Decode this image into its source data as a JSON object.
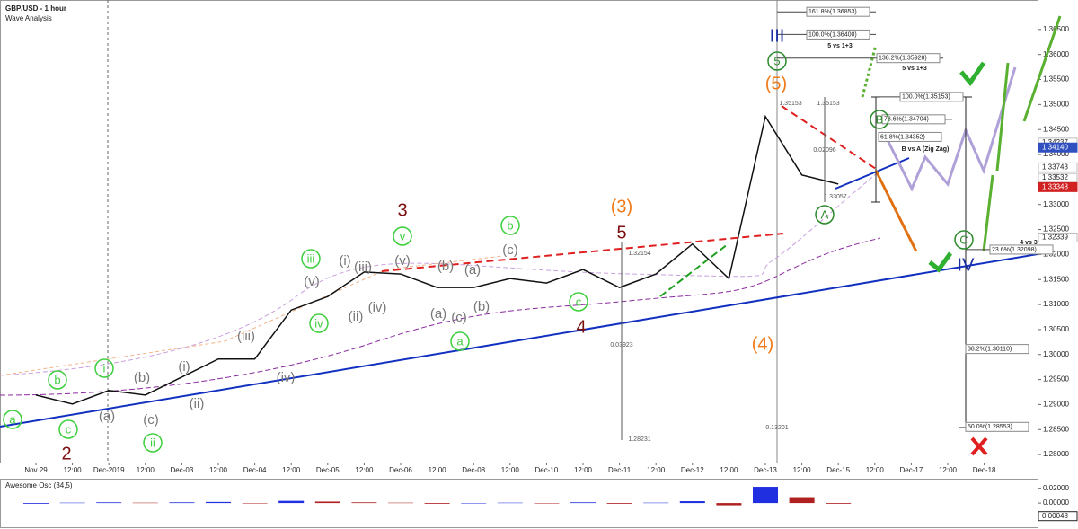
{
  "chart_data": {
    "type": "line",
    "title": "GBP/USD - 1 hour",
    "subtitle": "Wave Analysis",
    "categories": [
      "Nov 29",
      "12:00",
      "Dec-2019",
      "12:00",
      "Dec-03",
      "12:00",
      "Dec-04",
      "12:00",
      "Dec-05",
      "12:00",
      "Dec-06",
      "12:00",
      "Dec-08",
      "12:00",
      "Dec-10",
      "12:00",
      "Dec-11",
      "12:00",
      "Dec-12",
      "12:00",
      "Dec-13",
      "12:00",
      "Dec-15",
      "12:00",
      "Dec-17",
      "12:00",
      "Dec-18"
    ],
    "values": [
      1.2919,
      1.2901,
      1.2928,
      1.2919,
      1.2955,
      1.2991,
      1.2991,
      1.3089,
      1.3116,
      1.3165,
      1.3161,
      1.3134,
      1.3134,
      1.3152,
      1.3143,
      1.317,
      1.3134,
      1.3161,
      1.3221,
      1.3152,
      1.3476,
      1.3359,
      1.3341,
      null,
      null,
      null,
      null
    ],
    "color": "#111111",
    "ylim": [
      1.2784,
      1.3709
    ],
    "yticks": [
      {
        "value": 1.28,
        "label": "1.28000"
      },
      {
        "value": 1.285,
        "label": "1.28500"
      },
      {
        "value": 1.29,
        "label": "1.29000"
      },
      {
        "value": 1.295,
        "label": "1.29500"
      },
      {
        "value": 1.3,
        "label": "1.30000"
      },
      {
        "value": 1.305,
        "label": "1.30500"
      },
      {
        "value": 1.31,
        "label": "1.31000"
      },
      {
        "value": 1.315,
        "label": "1.31500"
      },
      {
        "value": 1.32,
        "label": "1.32000"
      },
      {
        "value": 1.325,
        "label": "1.32500"
      },
      {
        "value": 1.33,
        "label": "1.33000"
      },
      {
        "value": 1.335,
        "label": "1.33500"
      },
      {
        "value": 1.34,
        "label": "1.34000"
      },
      {
        "value": 1.345,
        "label": "1.34500"
      },
      {
        "value": 1.35,
        "label": "1.35000"
      },
      {
        "value": 1.355,
        "label": "1.35500"
      },
      {
        "value": 1.36,
        "label": "1.36000"
      },
      {
        "value": 1.365,
        "label": "1.36500"
      }
    ],
    "price_markers": [
      {
        "value": 1.34237,
        "label": "1.34237"
      },
      {
        "value": 1.3414,
        "label": "1.34140",
        "color": "#3050c0"
      },
      {
        "value": 1.33743,
        "label": "1.33743"
      },
      {
        "value": 1.33532,
        "label": "1.33532"
      },
      {
        "value": 1.33348,
        "label": "1.33348",
        "color": "#d02020"
      },
      {
        "value": 1.32339,
        "label": "1.32339"
      }
    ],
    "fib_levels": [
      {
        "value": 1.36853,
        "label": "161.8%(1.36853)"
      },
      {
        "value": 1.364,
        "label": "100.0%(1.36400)"
      },
      {
        "value": 1.35928,
        "label": "138.2%(1.35928)"
      },
      {
        "value": 1.35153,
        "label": "100.0%(1.35153)"
      },
      {
        "value": 1.34704,
        "label": "78.6%(1.34704)"
      },
      {
        "value": 1.34352,
        "label": "61.8%(1.34352)"
      },
      {
        "value": 1.32098,
        "label": "23.6%(1.32098)"
      },
      {
        "value": 1.3011,
        "label": "38.2%(1.30110)"
      },
      {
        "value": 1.28553,
        "label": "50.0%(1.28553)"
      }
    ],
    "notes": [
      "5 vs 1+3",
      "5 vs 1+3",
      "B vs A (Zig Zag)",
      "4 vs 3"
    ],
    "measurements": [
      "1.35153",
      "1.35153",
      "0.02096",
      "1.33057",
      "1.32154",
      "0.03923",
      "1.28231",
      "0.13201"
    ],
    "annotations": [
      {
        "text": "3",
        "color": "#7b1010"
      },
      {
        "text": "5",
        "color": "#7b1010"
      },
      {
        "text": "2",
        "color": "#7b1010"
      },
      {
        "text": "4",
        "color": "#7b1010"
      },
      {
        "text": "(3)",
        "color": "#f07a18"
      },
      {
        "text": "(5)",
        "color": "#f07a18"
      },
      {
        "text": "(4)",
        "color": "#f07a18"
      },
      {
        "text": "iii",
        "color": "#3ecf3e"
      },
      {
        "text": "v",
        "color": "#3ecf3e"
      },
      {
        "text": "b",
        "color": "#3ecf3e"
      },
      {
        "text": "i",
        "color": "#3ecf3e"
      },
      {
        "text": "b",
        "color": "#3ecf3e"
      },
      {
        "text": "a",
        "color": "#3ecf3e"
      },
      {
        "text": "c",
        "color": "#3ecf3e"
      },
      {
        "text": "ii",
        "color": "#3ecf3e"
      },
      {
        "text": "iv",
        "color": "#3ecf3e"
      },
      {
        "text": "c",
        "color": "#3ecf3e"
      },
      {
        "text": "a",
        "color": "#3ecf3e"
      },
      {
        "text": "5",
        "color": "#2a8a2a"
      },
      {
        "text": "B",
        "color": "#2a8a2a"
      },
      {
        "text": "A",
        "color": "#2a8a2a"
      },
      {
        "text": "C",
        "color": "#2a8a2a"
      },
      {
        "text": "(v)",
        "color": "#777777"
      },
      {
        "text": "(i)",
        "color": "#777777"
      },
      {
        "text": "(iii)",
        "color": "#777777"
      },
      {
        "text": "(ii)",
        "color": "#777777"
      },
      {
        "text": "(iv)",
        "color": "#777777"
      },
      {
        "text": "(v)",
        "color": "#777777"
      },
      {
        "text": "(b)",
        "color": "#777777"
      },
      {
        "text": "(a)",
        "color": "#777777"
      },
      {
        "text": "(a)",
        "color": "#777777"
      },
      {
        "text": "(c)",
        "color": "#777777"
      },
      {
        "text": "(b)",
        "color": "#777777"
      },
      {
        "text": "(c)",
        "color": "#777777"
      },
      {
        "text": "(iii)",
        "color": "#777777"
      },
      {
        "text": "(iv)",
        "color": "#777777"
      },
      {
        "text": "(b)",
        "color": "#777777"
      },
      {
        "text": "(i)",
        "color": "#777777"
      },
      {
        "text": "(a)",
        "color": "#777777"
      },
      {
        "text": "(c)",
        "color": "#777777"
      },
      {
        "text": "(ii)",
        "color": "#777777"
      },
      {
        "text": "III",
        "color": "#1a2ea0"
      },
      {
        "text": "IV",
        "color": "#1a2ea0"
      }
    ],
    "oscillator": {
      "title": "Awesome Osc (34,5)",
      "values": [
        -0.001,
        0.0005,
        0.001,
        0.0005,
        0.001,
        0.0015,
        -0.0005,
        0.003,
        0.002,
        0.001,
        0.0005,
        -0.001,
        -0.0005,
        0.0005,
        -0.0005,
        0.001,
        -0.001,
        0.0005,
        0.0025,
        -0.003,
        0.022,
        0.008,
        -0.001,
        null,
        null,
        null,
        null
      ],
      "ylim": [
        -0.034,
        0.0318
      ],
      "yticks": [
        {
          "value": 0.02,
          "label": "0.02000"
        },
        {
          "value": 0,
          "label": "0.00000"
        }
      ],
      "current": {
        "value": 0.00048,
        "label": "0.00048"
      },
      "up_color": "#2030e0",
      "down_color": "#b02020"
    }
  }
}
